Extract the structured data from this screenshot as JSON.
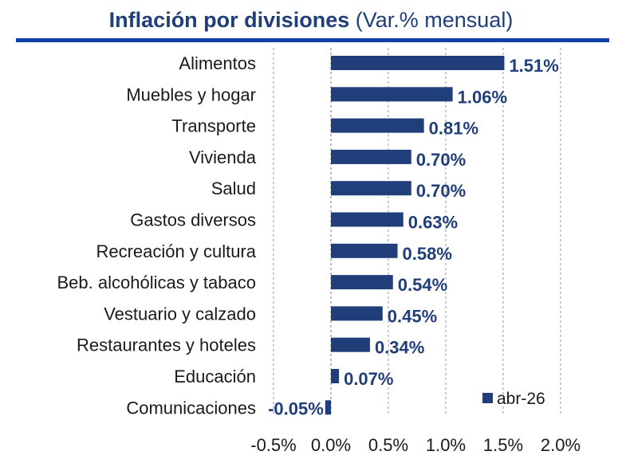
{
  "chart_data": {
    "type": "bar",
    "orientation": "horizontal",
    "title_bold": "Inflación por divisiones",
    "title_light": "(Var.% mensual)",
    "categories": [
      "Alimentos",
      "Muebles y hogar",
      "Transporte",
      "Vivienda",
      "Salud",
      "Gastos diversos",
      "Recreación y cultura",
      "Beb. alcohólicas y tabaco",
      "Vestuario y calzado",
      "Restaurantes y hoteles",
      "Educación",
      "Comunicaciones"
    ],
    "series": [
      {
        "name": "abr-26",
        "values": [
          1.51,
          1.06,
          0.81,
          0.7,
          0.7,
          0.63,
          0.58,
          0.54,
          0.45,
          0.34,
          0.07,
          -0.05
        ],
        "labels": [
          "1.51%",
          "1.06%",
          "0.81%",
          "0.70%",
          "0.70%",
          "0.63%",
          "0.58%",
          "0.54%",
          "0.45%",
          "0.34%",
          "0.07%",
          "-0.05%"
        ]
      }
    ],
    "xlim": [
      -0.5,
      2.0
    ],
    "xticks": [
      -0.5,
      0.0,
      0.5,
      1.0,
      1.5,
      2.0
    ],
    "xtick_labels": [
      "-0.5%",
      "0.0%",
      "0.5%",
      "1.0%",
      "1.5%",
      "2.0%"
    ],
    "grid": "vertical dashed",
    "legend_position": "bottom-right",
    "bar_color": "#1F3E7A"
  }
}
